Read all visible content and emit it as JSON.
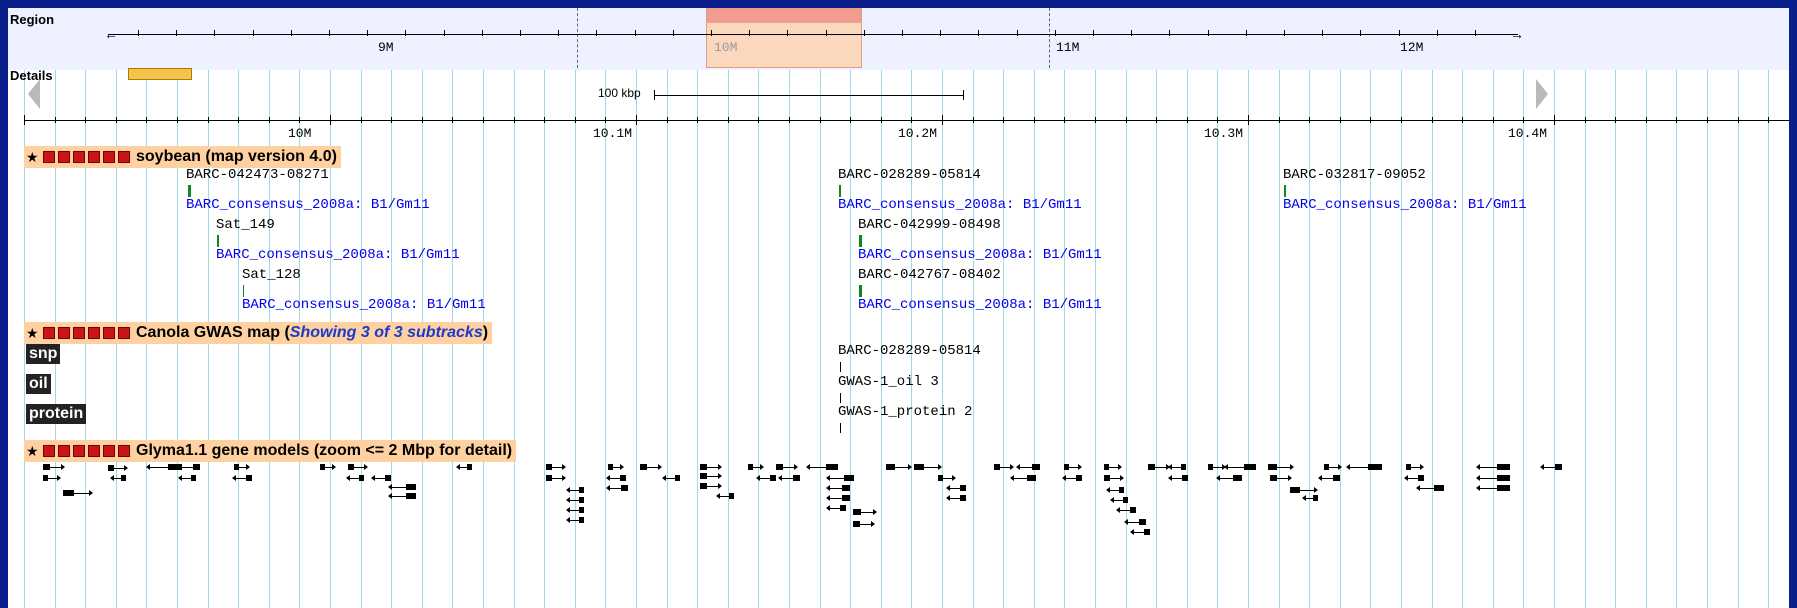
{
  "region": {
    "label": "Region",
    "ticks": [
      "9M",
      "10M",
      "11M",
      "12M"
    ]
  },
  "details": {
    "label": "Details",
    "scale_bar_label": "100 kbp",
    "ticks": [
      "10M",
      "10.1M",
      "10.2M",
      "10.3M",
      "10.4M"
    ]
  },
  "tracks": {
    "soybean": {
      "title": "soybean (map version 4.0)",
      "features": [
        {
          "name": "BARC-042473-08271",
          "link": "BARC_consensus_2008a: B1/Gm11"
        },
        {
          "name": "Sat_149",
          "link": "BARC_consensus_2008a: B1/Gm11"
        },
        {
          "name": "Sat_128",
          "link": "BARC_consensus_2008a: B1/Gm11"
        },
        {
          "name": "BARC-028289-05814",
          "link": "BARC_consensus_2008a: B1/Gm11"
        },
        {
          "name": "BARC-042999-08498",
          "link": "BARC_consensus_2008a: B1/Gm11"
        },
        {
          "name": "BARC-042767-08402",
          "link": "BARC_consensus_2008a: B1/Gm11"
        },
        {
          "name": "BARC-032817-09052",
          "link": "BARC_consensus_2008a: B1/Gm11"
        }
      ]
    },
    "canola": {
      "title_main": "Canola GWAS map (",
      "title_sub": "Showing 3 of 3 subtracks",
      "title_end": ")",
      "subtracks": [
        "snp",
        "oil",
        "protein"
      ],
      "features": [
        "BARC-028289-05814",
        "GWAS-1_oil 3",
        "GWAS-1_protein 2"
      ]
    },
    "glyma": {
      "title": "Glyma1.1 gene models (zoom <= 2 Mbp for detail)"
    }
  },
  "colors": {
    "background": "#0a1e8c",
    "track_header": "#ffd0a0",
    "region_highlight": "#f7a79a",
    "feature_green": "#0a8a1a",
    "link_blue": "#0000ee"
  },
  "icons": [
    "star-icon",
    "minimize-icon",
    "close-icon",
    "rss-icon",
    "save-icon",
    "configure-icon",
    "help-icon"
  ]
}
